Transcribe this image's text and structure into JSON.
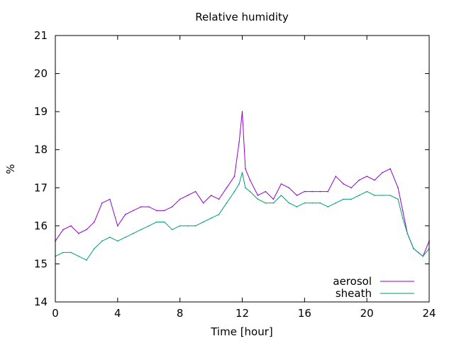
{
  "chart_data": {
    "type": "line",
    "title": "Relative humidity",
    "xlabel": "Time [hour]",
    "ylabel": "%",
    "xlim": [
      0,
      24
    ],
    "ylim": [
      14,
      21
    ],
    "xticks": [
      0,
      4,
      8,
      12,
      16,
      20,
      24
    ],
    "yticks": [
      14,
      15,
      16,
      17,
      18,
      19,
      20,
      21
    ],
    "grid": false,
    "legend_position": "bottom-right",
    "x": [
      0,
      0.5,
      1,
      1.5,
      2,
      2.5,
      3,
      3.5,
      4,
      4.5,
      5,
      5.5,
      6,
      6.5,
      7,
      7.5,
      8,
      8.5,
      9,
      9.5,
      10,
      10.5,
      11,
      11.5,
      11.8,
      12,
      12.2,
      12.5,
      13,
      13.5,
      14,
      14.5,
      15,
      15.5,
      16,
      16.5,
      17,
      17.5,
      18,
      18.5,
      19,
      19.5,
      20,
      20.5,
      21,
      21.5,
      22,
      22.3,
      22.6,
      23,
      23.3,
      23.6,
      24
    ],
    "series": [
      {
        "name": "aerosol",
        "color": "#9400d3",
        "values": [
          15.6,
          15.9,
          16.0,
          15.8,
          15.9,
          16.1,
          16.6,
          16.7,
          16.0,
          16.3,
          16.4,
          16.5,
          16.5,
          16.4,
          16.4,
          16.5,
          16.7,
          16.8,
          16.9,
          16.6,
          16.8,
          16.7,
          17.0,
          17.3,
          18.2,
          19.0,
          17.5,
          17.2,
          16.8,
          16.9,
          16.7,
          17.1,
          17.0,
          16.8,
          16.9,
          16.9,
          16.9,
          16.9,
          17.3,
          17.1,
          17.0,
          17.2,
          17.3,
          17.2,
          17.4,
          17.5,
          17.0,
          16.4,
          15.8,
          15.4,
          15.3,
          15.2,
          15.6
        ]
      },
      {
        "name": "sheath",
        "color": "#009e73",
        "values": [
          15.2,
          15.3,
          15.3,
          15.2,
          15.1,
          15.4,
          15.6,
          15.7,
          15.6,
          15.7,
          15.8,
          15.9,
          16.0,
          16.1,
          16.1,
          15.9,
          16.0,
          16.0,
          16.0,
          16.1,
          16.2,
          16.3,
          16.6,
          16.9,
          17.1,
          17.4,
          17.0,
          16.9,
          16.7,
          16.6,
          16.6,
          16.8,
          16.6,
          16.5,
          16.6,
          16.6,
          16.6,
          16.5,
          16.6,
          16.7,
          16.7,
          16.8,
          16.9,
          16.8,
          16.8,
          16.8,
          16.7,
          16.2,
          15.8,
          15.4,
          15.3,
          15.2,
          15.4
        ]
      }
    ]
  }
}
